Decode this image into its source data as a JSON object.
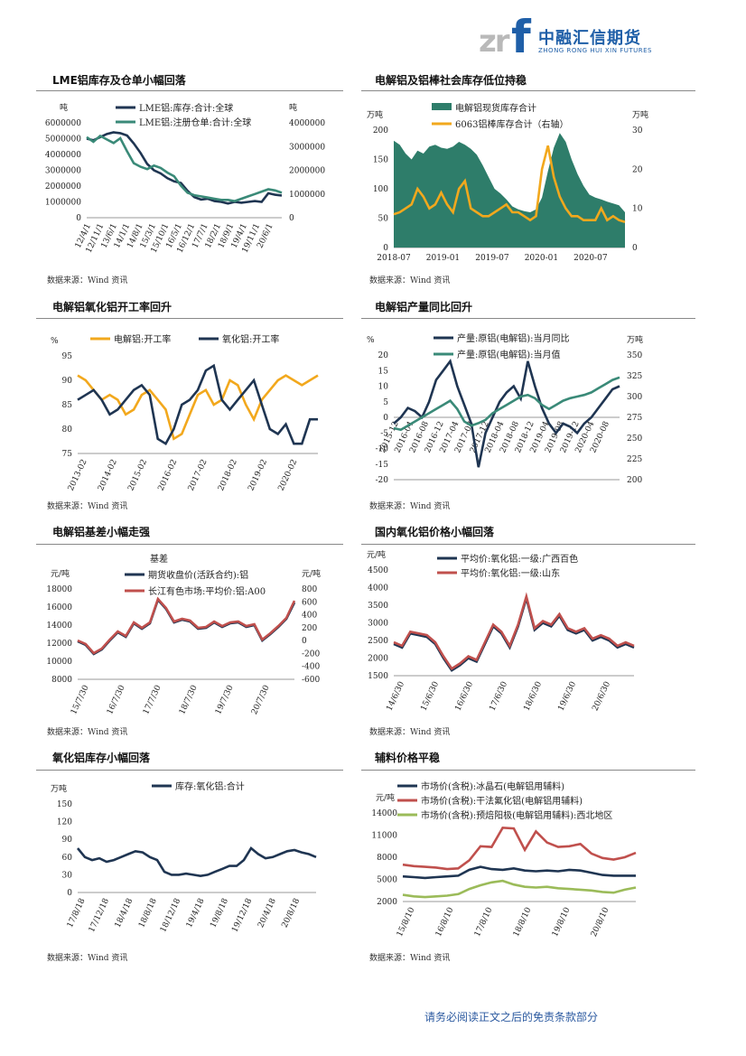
{
  "header": {
    "logo_mark": "zr",
    "logo_f": "f",
    "company_cn": "中融汇信期货",
    "company_en": "ZHONG RONG HUI XIN FUTURES"
  },
  "sections": [
    {
      "title": "LME铝库存及仓单小幅回落",
      "source": "数据来源：Wind 资讯"
    },
    {
      "title": "电解铝及铝棒社会库存低位持稳",
      "source": "数据来源：Wind 资讯"
    },
    {
      "title": "电解铝氧化铝开工率回升",
      "source": "数据来源：Wind 资讯"
    },
    {
      "title": "电解铝产量同比回升",
      "source": "数据来源：Wind 资讯"
    },
    {
      "title": "电解铝基差小幅走强",
      "source": "数据来源：Wind 资讯"
    },
    {
      "title": "国内氧化铝价格小幅回落",
      "source": "数据来源：Wind 资讯"
    },
    {
      "title": "氧化铝库存小幅回落",
      "source": "数据来源：Wind 资讯"
    },
    {
      "title": "辅料价格平稳",
      "source": "数据来源：Wind 资讯"
    }
  ],
  "footer": {
    "text": "请务必阅读正文之后的免责条款部分"
  },
  "colors": {
    "navy": "#1f3552",
    "teal": "#3a8a78",
    "orange": "#f2a81d",
    "red": "#c0504d",
    "green": "#9bbb59",
    "blue": "#1f5fa8"
  },
  "chart_data": [
    {
      "type": "line",
      "units_left": "吨",
      "units_right": "吨",
      "yticks_left": [
        "6000000",
        "5000000",
        "4000000",
        "3000000",
        "2000000",
        "1000000",
        "0"
      ],
      "yticks_right": [
        "4000000",
        "3000000",
        "2000000",
        "1000000",
        "0"
      ],
      "ylim_left": [
        0,
        6000000
      ],
      "ylim_right": [
        0,
        4000000
      ],
      "xticks": [
        "12/4/1",
        "12/11/1",
        "13/6/1",
        "14/1/1",
        "14/8/1",
        "15/3/1",
        "15/10/1",
        "16/5/1",
        "16/12/1",
        "17/7/1",
        "18/2/1",
        "18/9/1",
        "19/4/1",
        "19/11/1",
        "20/6/1"
      ],
      "series": [
        {
          "name": "LME铝:库存:合计:全球",
          "axis": "left",
          "color": "#1f3552",
          "values": [
            5000000,
            4900000,
            5100000,
            5300000,
            5400000,
            5350000,
            5200000,
            4700000,
            4100000,
            3400000,
            3000000,
            2800000,
            2500000,
            2300000,
            2200000,
            1700000,
            1300000,
            1150000,
            1200000,
            1050000,
            1000000,
            900000,
            1000000,
            950000,
            1000000,
            1050000,
            1000000,
            1550000,
            1450000,
            1400000
          ]
        },
        {
          "name": "LME铝:注册仓单:合计:全球",
          "axis": "right",
          "color": "#3a8a78",
          "values": [
            3400000,
            3200000,
            3450000,
            3300000,
            3150000,
            3350000,
            2800000,
            2300000,
            2150000,
            2050000,
            2200000,
            2100000,
            1900000,
            1750000,
            1350000,
            1050000,
            950000,
            900000,
            850000,
            800000,
            750000,
            750000,
            700000,
            800000,
            900000,
            1000000,
            1100000,
            1200000,
            1150000,
            1050000
          ]
        }
      ]
    },
    {
      "type": "area",
      "units_left": "万吨",
      "units_right": "万吨",
      "yticks_left": [
        "200",
        "150",
        "100",
        "50",
        "0"
      ],
      "yticks_right": [
        "30",
        "20",
        "10",
        "0"
      ],
      "ylim_left": [
        0,
        200
      ],
      "ylim_right": [
        0,
        30
      ],
      "xticks": [
        "2018-07",
        "2019-01",
        "2019-07",
        "2020-01",
        "2020-07"
      ],
      "series": [
        {
          "name": "电解铝现货库存合计",
          "axis": "left",
          "color": "#2e7d6a",
          "values": [
            182,
            175,
            160,
            150,
            165,
            160,
            172,
            175,
            170,
            168,
            172,
            180,
            175,
            168,
            158,
            140,
            120,
            100,
            92,
            82,
            70,
            65,
            62,
            60,
            65,
            85,
            130,
            170,
            195,
            180,
            150,
            125,
            105,
            90,
            85,
            82,
            78,
            75,
            72,
            60
          ]
        },
        {
          "name": "6063铝棒库存合计（右轴）",
          "axis": "right",
          "color": "#f2a81d",
          "values": [
            8.5,
            9,
            10,
            11,
            15,
            13,
            10,
            11,
            14,
            11,
            9,
            15,
            17,
            10,
            9,
            8,
            8,
            9,
            10,
            11,
            9,
            9,
            8,
            7,
            8,
            20,
            26,
            18,
            13,
            10,
            8,
            8,
            7,
            7,
            7,
            10,
            7,
            8,
            7,
            6.5
          ]
        }
      ]
    },
    {
      "type": "line",
      "units_left": "%",
      "yticks_left": [
        "95",
        "90",
        "85",
        "80",
        "75"
      ],
      "ylim_left": [
        75,
        95
      ],
      "xticks": [
        "2013-02",
        "2014-02",
        "2015-02",
        "2016-02",
        "2017-02",
        "2018-02",
        "2019-02",
        "2020-02"
      ],
      "series": [
        {
          "name": "电解铝:开工率",
          "color": "#f2a81d",
          "values": [
            91,
            90,
            88,
            86,
            87,
            86,
            83,
            84,
            87,
            88,
            86,
            84,
            78,
            79,
            83,
            87,
            88,
            85,
            86,
            90,
            89,
            85,
            82,
            86,
            88,
            90,
            91,
            90,
            89,
            90,
            91
          ]
        },
        {
          "name": "氧化铝:开工率",
          "color": "#1f3552",
          "values": [
            86,
            87,
            88,
            86,
            83,
            84,
            86,
            88,
            89,
            87,
            78,
            77,
            80,
            85,
            86,
            88,
            92,
            93,
            86,
            84,
            86,
            88,
            90,
            85,
            80,
            79,
            81,
            77,
            77,
            82,
            82
          ]
        }
      ]
    },
    {
      "type": "line",
      "units_left": "%",
      "units_right": "万吨",
      "yticks_left": [
        "20",
        "15",
        "10",
        "5",
        "0",
        "-5",
        "-10",
        "-15",
        "-20"
      ],
      "yticks_right": [
        "350",
        "325",
        "300",
        "275",
        "250",
        "225",
        "200"
      ],
      "ylim_left": [
        -20,
        20
      ],
      "ylim_right": [
        200,
        350
      ],
      "xticks": [
        "2015-12",
        "2016-04",
        "2016-08",
        "2016-12",
        "2017-04",
        "2017-08",
        "2017-12",
        "2018-04",
        "2018-08",
        "2018-12",
        "2019-04",
        "2019-08",
        "2019-12",
        "2020-04",
        "2020-08"
      ],
      "series": [
        {
          "name": "产量:原铝(电解铝):当月同比",
          "axis": "left",
          "color": "#1f3552",
          "values": [
            -2,
            0,
            3,
            2,
            0,
            5,
            12,
            15,
            18,
            10,
            4,
            -2,
            -16,
            -5,
            0,
            5,
            8,
            10,
            6,
            18,
            10,
            3,
            -2,
            -5,
            -2,
            -3,
            -5,
            -2,
            0,
            3,
            6,
            9,
            10
          ]
        },
        {
          "name": "产量:原铝(电解铝):当月值",
          "axis": "right",
          "color": "#3a8a78",
          "values": [
            262,
            260,
            265,
            270,
            275,
            280,
            285,
            290,
            295,
            285,
            270,
            265,
            268,
            272,
            280,
            285,
            290,
            295,
            300,
            302,
            298,
            290,
            285,
            290,
            295,
            298,
            300,
            302,
            305,
            310,
            315,
            320,
            323
          ]
        }
      ]
    },
    {
      "type": "line",
      "units_left": "元/吨",
      "units_right": "元/吨",
      "right_title": "基差",
      "yticks_left": [
        "18000",
        "16000",
        "14000",
        "12000",
        "10000",
        "8000"
      ],
      "yticks_right": [
        "800",
        "600",
        "400",
        "200",
        "0",
        "-200",
        "-400",
        "-600"
      ],
      "ylim_left": [
        8000,
        18000
      ],
      "ylim_right": [
        -600,
        800
      ],
      "xticks": [
        "15/7/30",
        "16/7/30",
        "17/7/30",
        "18/7/30",
        "19/7/30",
        "20/7/30"
      ],
      "series": [
        {
          "name": "期货收盘价(活跃合约):铝",
          "color": "#1f3552",
          "values": [
            12200,
            11800,
            10800,
            11300,
            12300,
            13200,
            12700,
            14200,
            13600,
            14200,
            16800,
            15800,
            14300,
            14600,
            14400,
            13600,
            13700,
            14300,
            13800,
            14200,
            14300,
            13800,
            14000,
            12300,
            13000,
            13800,
            14700,
            16500
          ]
        },
        {
          "name": "长江有色市场:平均价:铝:A00",
          "color": "#c0504d",
          "values": [
            12300,
            11900,
            10900,
            11400,
            12400,
            13300,
            12800,
            14300,
            13700,
            14300,
            16900,
            15900,
            14400,
            14700,
            14500,
            13700,
            13800,
            14400,
            13900,
            14300,
            14400,
            13900,
            14100,
            12400,
            13100,
            13900,
            14800,
            16700
          ]
        }
      ]
    },
    {
      "type": "line",
      "units_left": "元/吨",
      "yticks_left": [
        "4500",
        "4000",
        "3500",
        "3000",
        "2500",
        "2000",
        "1500"
      ],
      "ylim_left": [
        1500,
        4500
      ],
      "xticks": [
        "14/6/30",
        "15/6/30",
        "16/6/30",
        "17/6/30",
        "18/6/30",
        "19/6/30",
        "20/6/30"
      ],
      "series": [
        {
          "name": "平均价:氧化铝:一级:广西百色",
          "color": "#1f3552",
          "values": [
            2400,
            2300,
            2700,
            2650,
            2600,
            2400,
            2000,
            1650,
            1800,
            2000,
            1900,
            2400,
            2900,
            2700,
            2300,
            2900,
            3700,
            2800,
            3000,
            2900,
            3200,
            2800,
            2700,
            2800,
            2500,
            2600,
            2500,
            2300,
            2400,
            2300
          ]
        },
        {
          "name": "平均价:氧化铝:一级:山东",
          "color": "#c0504d",
          "values": [
            2450,
            2350,
            2750,
            2700,
            2650,
            2450,
            2050,
            1700,
            1850,
            2050,
            1950,
            2450,
            2950,
            2750,
            2350,
            2950,
            3750,
            2850,
            3050,
            2950,
            3250,
            2850,
            2750,
            2850,
            2550,
            2650,
            2550,
            2350,
            2450,
            2350
          ]
        }
      ]
    },
    {
      "type": "line",
      "units_left": "万吨",
      "yticks_left": [
        "150",
        "120",
        "90",
        "60",
        "30",
        "0"
      ],
      "ylim_left": [
        0,
        150
      ],
      "xticks": [
        "17/8/18",
        "17/12/18",
        "18/4/18",
        "18/8/18",
        "18/12/18",
        "19/4/18",
        "19/8/18",
        "19/12/18",
        "20/4/18",
        "20/8/18"
      ],
      "series": [
        {
          "name": "库存:氧化铝:合计",
          "color": "#1f3552",
          "values": [
            75,
            60,
            55,
            58,
            52,
            55,
            60,
            65,
            70,
            68,
            60,
            55,
            35,
            30,
            30,
            32,
            30,
            28,
            30,
            35,
            40,
            45,
            45,
            55,
            75,
            65,
            58,
            60,
            65,
            70,
            72,
            68,
            65,
            60
          ]
        }
      ]
    },
    {
      "type": "line",
      "units_left": "元/吨",
      "yticks_left": [
        "14000",
        "11000",
        "8000",
        "5000",
        "2000"
      ],
      "ylim_left": [
        2000,
        14000
      ],
      "xticks": [
        "15/8/10",
        "16/8/10",
        "17/8/10",
        "18/8/10",
        "19/8/10",
        "20/8/10"
      ],
      "series": [
        {
          "name": "市场价(含税):冰晶石(电解铝用辅料)",
          "color": "#1f3552",
          "values": [
            5400,
            5300,
            5200,
            5300,
            5400,
            5500,
            6300,
            6700,
            6400,
            6300,
            6500,
            6200,
            6100,
            6200,
            6100,
            6300,
            6200,
            5900,
            5600,
            5500,
            5500,
            5500
          ]
        },
        {
          "name": "市场价(含税):干法氟化铝(电解铝用辅料)",
          "color": "#c0504d",
          "values": [
            7000,
            6800,
            6700,
            6600,
            6400,
            6500,
            7600,
            9500,
            9400,
            12000,
            11900,
            9000,
            11500,
            10000,
            9400,
            9500,
            9800,
            8500,
            7900,
            7700,
            8000,
            8600
          ]
        },
        {
          "name": "市场价(含税):预焙阳极(电解铝用辅料):西北地区",
          "color": "#9bbb59",
          "values": [
            2900,
            2700,
            2600,
            2700,
            2800,
            3000,
            3700,
            4200,
            4600,
            4800,
            4300,
            4000,
            3900,
            4000,
            3800,
            3700,
            3600,
            3500,
            3300,
            3200,
            3600,
            3900
          ]
        }
      ]
    }
  ]
}
